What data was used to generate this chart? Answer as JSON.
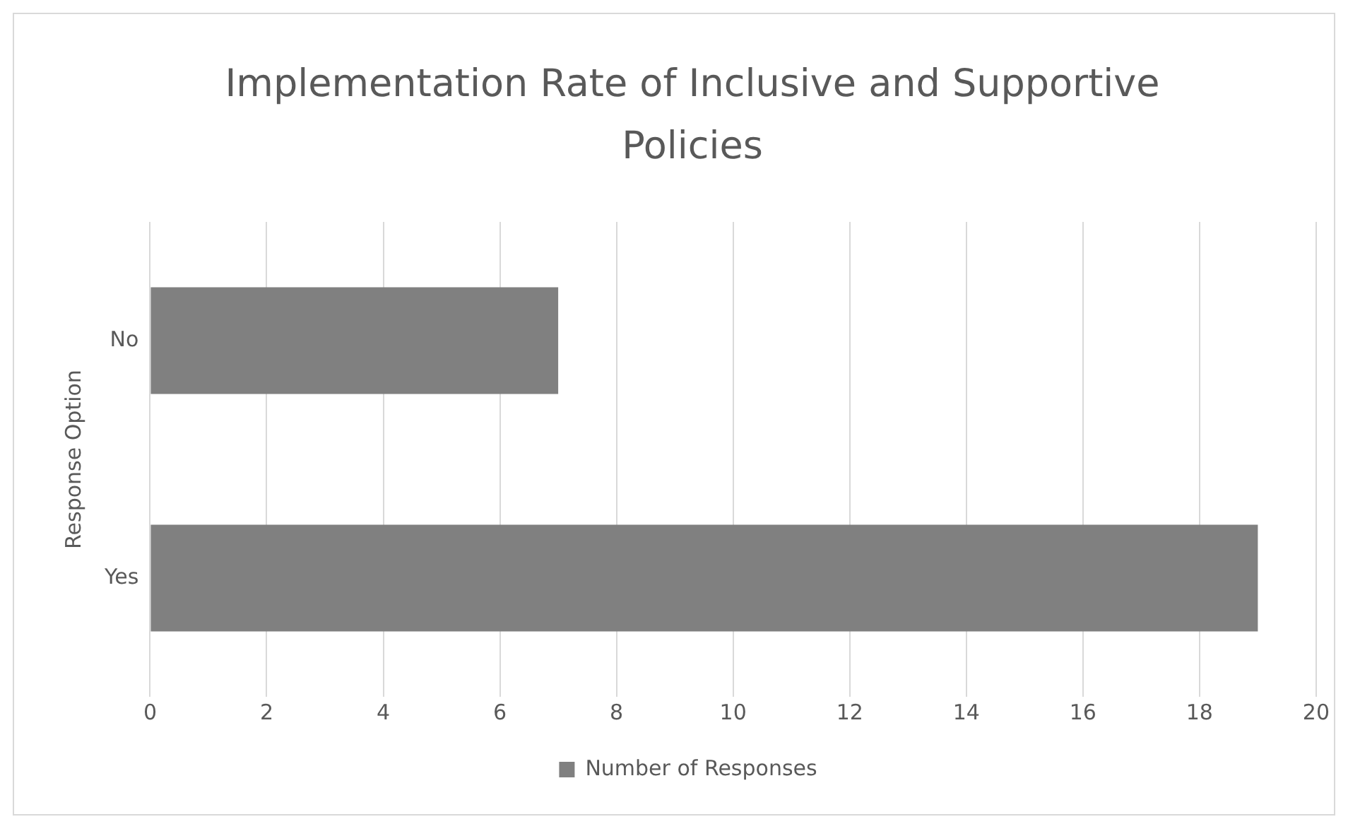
{
  "chart_data": {
    "type": "bar",
    "orientation": "horizontal",
    "title": "Implementation Rate of Inclusive and Supportive Policies",
    "ylabel": "Response Option",
    "categories": [
      "No",
      "Yes"
    ],
    "series": [
      {
        "name": "Number of Responses",
        "color": "#808080",
        "values": [
          7,
          19
        ]
      }
    ],
    "xlim": [
      0,
      20
    ],
    "xticks": [
      0,
      2,
      4,
      6,
      8,
      10,
      12,
      14,
      16,
      18,
      20
    ],
    "grid": "x",
    "legend": "bottom"
  }
}
